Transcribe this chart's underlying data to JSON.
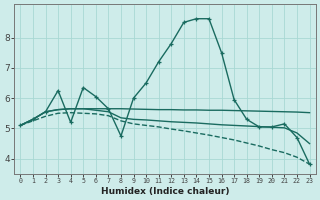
{
  "xlabel": "Humidex (Indice chaleur)",
  "xlim": [
    -0.5,
    23.5
  ],
  "ylim": [
    3.5,
    9.1
  ],
  "yticks": [
    4,
    5,
    6,
    7,
    8
  ],
  "xticks": [
    0,
    1,
    2,
    3,
    4,
    5,
    6,
    7,
    8,
    9,
    10,
    11,
    12,
    13,
    14,
    15,
    16,
    17,
    18,
    19,
    20,
    21,
    22,
    23
  ],
  "background_color": "#ceecea",
  "grid_color": "#a8d8d4",
  "line_color": "#1a6b60",
  "lines": [
    {
      "x": [
        0,
        1,
        2,
        3,
        4,
        5,
        6,
        7,
        8,
        9,
        10,
        11,
        12,
        13,
        14,
        15,
        16,
        17,
        18,
        19,
        20,
        21,
        22,
        23
      ],
      "y": [
        5.1,
        5.3,
        5.55,
        6.25,
        5.2,
        6.35,
        6.05,
        5.65,
        4.75,
        6.0,
        6.5,
        7.2,
        7.8,
        8.5,
        8.62,
        8.62,
        7.5,
        5.95,
        5.3,
        5.05,
        5.05,
        5.15,
        4.7,
        3.82
      ],
      "style": "-",
      "marker": "+",
      "lw": 1.0
    },
    {
      "x": [
        0,
        1,
        2,
        3,
        4,
        5,
        6,
        7,
        8,
        9,
        10,
        11,
        12,
        13,
        14,
        15,
        16,
        17,
        18,
        19,
        20,
        21,
        22,
        23
      ],
      "y": [
        5.1,
        5.3,
        5.55,
        5.62,
        5.65,
        5.65,
        5.65,
        5.65,
        5.65,
        5.64,
        5.63,
        5.62,
        5.62,
        5.61,
        5.61,
        5.6,
        5.6,
        5.59,
        5.58,
        5.57,
        5.56,
        5.55,
        5.54,
        5.52
      ],
      "style": "-",
      "marker": null,
      "lw": 1.0
    },
    {
      "x": [
        0,
        1,
        2,
        3,
        4,
        5,
        6,
        7,
        8,
        9,
        10,
        11,
        12,
        13,
        14,
        15,
        16,
        17,
        18,
        19,
        20,
        21,
        22,
        23
      ],
      "y": [
        5.1,
        5.3,
        5.55,
        5.62,
        5.65,
        5.65,
        5.6,
        5.55,
        5.35,
        5.3,
        5.28,
        5.25,
        5.22,
        5.2,
        5.18,
        5.15,
        5.12,
        5.1,
        5.08,
        5.06,
        5.04,
        5.02,
        4.85,
        4.5
      ],
      "style": "-",
      "marker": null,
      "lw": 1.0
    },
    {
      "x": [
        0,
        1,
        2,
        3,
        4,
        5,
        6,
        7,
        8,
        9,
        10,
        11,
        12,
        13,
        14,
        15,
        16,
        17,
        18,
        19,
        20,
        21,
        22,
        23
      ],
      "y": [
        5.1,
        5.25,
        5.4,
        5.5,
        5.52,
        5.5,
        5.48,
        5.42,
        5.25,
        5.15,
        5.1,
        5.05,
        4.98,
        4.92,
        4.85,
        4.78,
        4.7,
        4.62,
        4.52,
        4.42,
        4.3,
        4.2,
        4.05,
        3.82
      ],
      "style": "--",
      "marker": null,
      "lw": 1.0
    }
  ]
}
